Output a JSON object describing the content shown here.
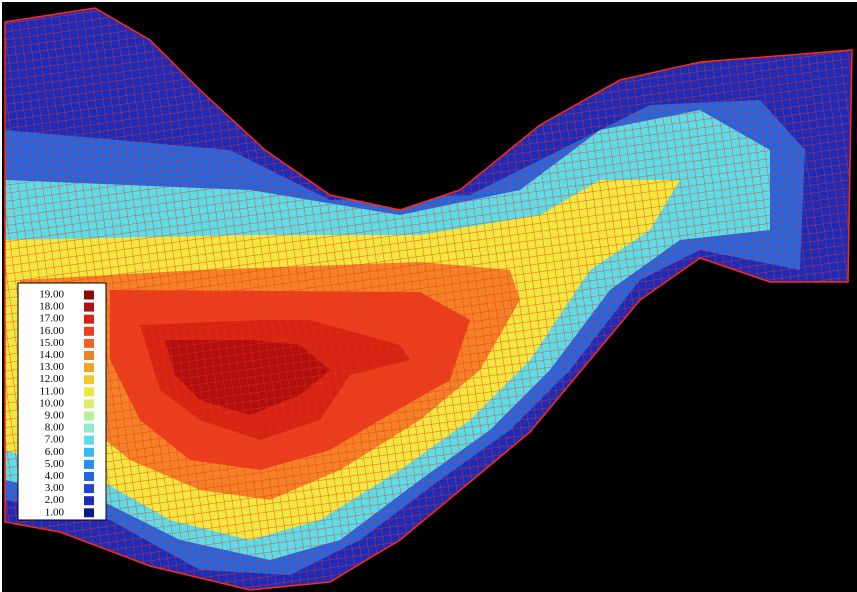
{
  "legend": {
    "items": [
      {
        "label": "19.00",
        "color": "#8a0a0a"
      },
      {
        "label": "18.00",
        "color": "#b01010"
      },
      {
        "label": "17.00",
        "color": "#d42414"
      },
      {
        "label": "16.00",
        "color": "#e8401e"
      },
      {
        "label": "15.00",
        "color": "#f06222"
      },
      {
        "label": "14.00",
        "color": "#f28228"
      },
      {
        "label": "13.00",
        "color": "#f4a224"
      },
      {
        "label": "12.00",
        "color": "#f4c828"
      },
      {
        "label": "11.00",
        "color": "#f0e840"
      },
      {
        "label": "10.00",
        "color": "#d8f070"
      },
      {
        "label": "9.00",
        "color": "#b4f098"
      },
      {
        "label": "8.00",
        "color": "#90ecc8"
      },
      {
        "label": "7.00",
        "color": "#5cdce6"
      },
      {
        "label": "6.00",
        "color": "#3ab8f0"
      },
      {
        "label": "5.00",
        "color": "#2690ee"
      },
      {
        "label": "4.00",
        "color": "#2466e0"
      },
      {
        "label": "3.00",
        "color": "#2444d0"
      },
      {
        "label": "2.00",
        "color": "#1c2cb8"
      },
      {
        "label": "1.00",
        "color": "#0c1890"
      }
    ]
  }
}
